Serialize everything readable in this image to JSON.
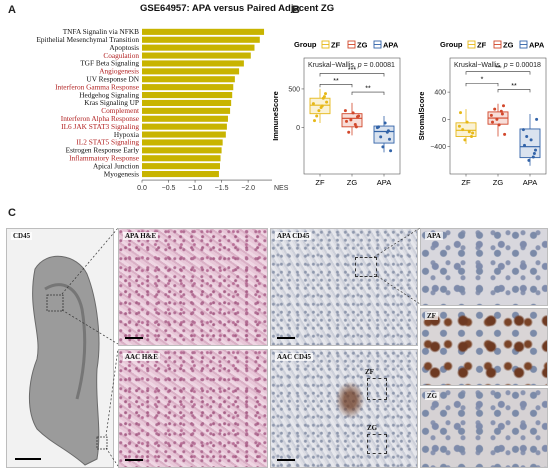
{
  "panels": {
    "a": "A",
    "b": "B",
    "c": "C"
  },
  "panelA": {
    "title": "GSE64957: APA versus Paired Adjacent ZG",
    "bar_color": "#c8b400",
    "label_colors": {
      "black": "#111111",
      "red": "#b22222"
    },
    "terms": [
      {
        "label": "TNFA Signalin via NFKB",
        "color": "black",
        "nes": -2.3
      },
      {
        "label": "Epithelial Mesenchymal Transition",
        "color": "black",
        "nes": -2.22
      },
      {
        "label": "Apoptosis",
        "color": "black",
        "nes": -2.12
      },
      {
        "label": "Coagulation",
        "color": "red",
        "nes": -2.05
      },
      {
        "label": "TGF Beta Signaling",
        "color": "black",
        "nes": -1.92
      },
      {
        "label": "Angiogenesis",
        "color": "red",
        "nes": -1.83
      },
      {
        "label": "UV Response DN",
        "color": "black",
        "nes": -1.75
      },
      {
        "label": "Interferon Gamma Response",
        "color": "red",
        "nes": -1.72
      },
      {
        "label": "Hedgehog Signaling",
        "color": "black",
        "nes": -1.7
      },
      {
        "label": "Kras Signaling UP",
        "color": "black",
        "nes": -1.68
      },
      {
        "label": "Complement",
        "color": "red",
        "nes": -1.66
      },
      {
        "label": "Interferon Alpha Response",
        "color": "red",
        "nes": -1.62
      },
      {
        "label": "IL6 JAK STAT3 Signaling",
        "color": "red",
        "nes": -1.6
      },
      {
        "label": "Hypoxia",
        "color": "black",
        "nes": -1.58
      },
      {
        "label": "IL2 STAT5 Signaling",
        "color": "red",
        "nes": -1.52
      },
      {
        "label": "Estrogen Response Early",
        "color": "black",
        "nes": -1.5
      },
      {
        "label": "Inflammatory Response",
        "color": "red",
        "nes": -1.48
      },
      {
        "label": "Apical Junction",
        "color": "black",
        "nes": -1.47
      },
      {
        "label": "Myogenesis",
        "color": "black",
        "nes": -1.45
      }
    ],
    "axis": {
      "ticks": [
        "0.0",
        "−0.5",
        "−1.0",
        "−1.5",
        "−2.0"
      ],
      "tick_values": [
        0,
        -0.5,
        -1.0,
        -1.5,
        -2.0
      ],
      "unit": "NES",
      "xlim": [
        0,
        -2.45
      ]
    }
  },
  "panelB": {
    "colors": {
      "ZF": "#e6b818",
      "ZG": "#d2472b",
      "APA": "#3263a8"
    },
    "legend_title": "Group",
    "groups": [
      "ZF",
      "ZG",
      "APA"
    ],
    "plots": [
      {
        "ylabel": "ImmuneScore",
        "test": "Kruskal−Wallis, ",
        "p_label": "p",
        "p_value": " = 0.00081",
        "ylim": [
          -600,
          900
        ],
        "yticks": [
          0,
          500
        ],
        "tick_labels": [
          "0",
          "500"
        ],
        "brackets": [
          {
            "from": "ZF",
            "to": "ZG",
            "label": "**",
            "y": 560
          },
          {
            "from": "ZG",
            "to": "APA",
            "label": "**",
            "y": 460
          },
          {
            "from": "ZF",
            "to": "APA",
            "label": "***",
            "y": 700
          }
        ],
        "boxes": {
          "ZF": {
            "q1": 180,
            "med": 290,
            "q3": 380,
            "lo": 60,
            "hi": 500,
            "points": [
              310,
              440,
              380,
              260,
              220,
              150,
              90,
              330,
              400,
              280
            ]
          },
          "ZG": {
            "q1": 10,
            "med": 120,
            "q3": 180,
            "lo": -100,
            "hi": 320,
            "points": [
              220,
              140,
              40,
              190,
              100,
              -60,
              80,
              150,
              10
            ]
          },
          "APA": {
            "q1": -200,
            "med": -50,
            "q3": 20,
            "lo": -320,
            "hi": 150,
            "points": [
              0,
              -150,
              -60,
              60,
              -250,
              -120,
              10,
              -300,
              -40
            ]
          }
        }
      },
      {
        "ylabel": "StromalScore",
        "test": "Kruskal−Wallis, ",
        "p_label": "p",
        "p_value": " = 0.00018",
        "ylim": [
          -800,
          900
        ],
        "yticks": [
          -400,
          0,
          400
        ],
        "tick_labels": [
          "−400",
          "0",
          "400"
        ],
        "brackets": [
          {
            "from": "ZF",
            "to": "ZG",
            "label": "*",
            "y": 530
          },
          {
            "from": "ZG",
            "to": "APA",
            "label": "**",
            "y": 440
          },
          {
            "from": "ZF",
            "to": "APA",
            "label": "**",
            "y": 700
          }
        ],
        "boxes": {
          "ZF": {
            "q1": -250,
            "med": -160,
            "q3": -50,
            "lo": -360,
            "hi": 150,
            "points": [
              -100,
              -250,
              -180,
              -40,
              -300,
              -150,
              100,
              -200
            ]
          },
          "ZG": {
            "q1": -70,
            "med": 20,
            "q3": 110,
            "lo": -250,
            "hi": 230,
            "points": [
              60,
              200,
              120,
              -80,
              0,
              150,
              -40,
              -220,
              80
            ]
          },
          "APA": {
            "q1": -560,
            "med": -400,
            "q3": -140,
            "lo": -680,
            "hi": 80,
            "points": [
              -150,
              -450,
              -550,
              -300,
              -600,
              -250,
              -380,
              0,
              -500
            ]
          }
        }
      }
    ]
  },
  "panelC": {
    "labels": {
      "overview": "CD45",
      "apa_he": "APA H&E",
      "apa_cd45": "APA CD45",
      "apa_zoom": "APA",
      "aac_he": "AAC H&E",
      "aac_cd45": "AAC CD45",
      "zf_zoom": "ZF",
      "zg_zoom": "ZG",
      "zf_roi": "ZF",
      "zg_roi": "ZG"
    }
  }
}
